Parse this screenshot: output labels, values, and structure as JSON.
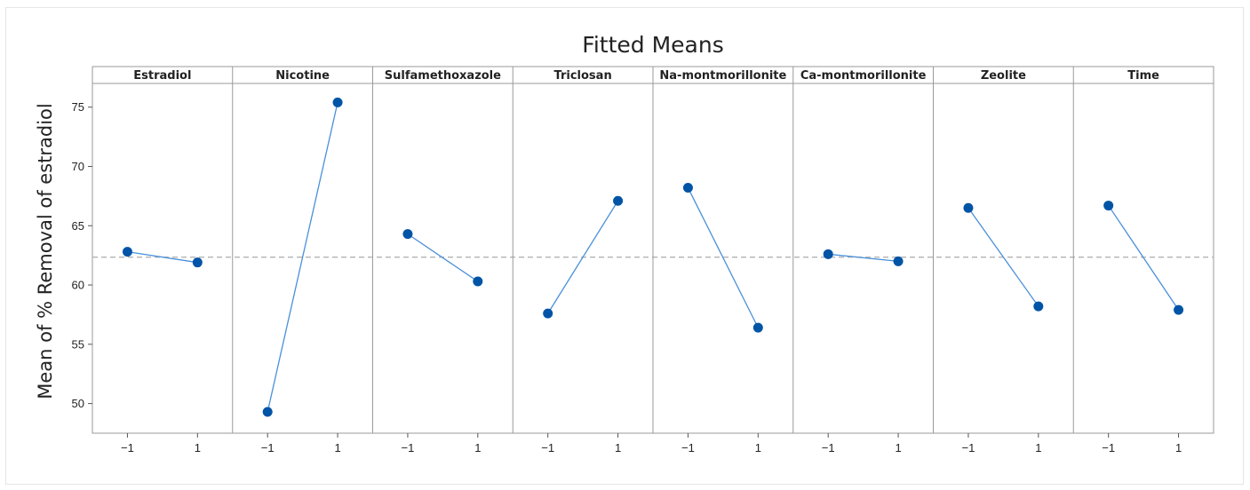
{
  "chart_data": {
    "type": "line",
    "title": "Fitted Means",
    "xlabel": "",
    "ylabel": "Mean of % Removal of estradiol",
    "ylim": [
      47.5,
      77.0
    ],
    "y_ticks": [
      50,
      55,
      60,
      65,
      70,
      75
    ],
    "x_ticks": [
      "−1",
      "1"
    ],
    "reference_line": 62.35,
    "grid": false,
    "marker_color": "#0054a6",
    "line_color": "#4a90d9",
    "reference_line_color": "#b4b4b4",
    "panels": [
      {
        "name": "Estradiol",
        "x": [
          "−1",
          "1"
        ],
        "values": [
          62.8,
          61.9
        ]
      },
      {
        "name": "Nicotine",
        "x": [
          "−1",
          "1"
        ],
        "values": [
          49.3,
          75.4
        ]
      },
      {
        "name": "Sulfamethoxazole",
        "x": [
          "−1",
          "1"
        ],
        "values": [
          64.3,
          60.3
        ]
      },
      {
        "name": "Triclosan",
        "x": [
          "−1",
          "1"
        ],
        "values": [
          57.6,
          67.1
        ]
      },
      {
        "name": "Na-montmorillonite",
        "x": [
          "−1",
          "1"
        ],
        "values": [
          68.2,
          56.4
        ]
      },
      {
        "name": "Ca-montmorillonite",
        "x": [
          "−1",
          "1"
        ],
        "values": [
          62.6,
          62.0
        ]
      },
      {
        "name": "Zeolite",
        "x": [
          "−1",
          "1"
        ],
        "values": [
          66.5,
          58.2
        ]
      },
      {
        "name": "Time",
        "x": [
          "−1",
          "1"
        ],
        "values": [
          66.7,
          57.9
        ]
      }
    ]
  }
}
